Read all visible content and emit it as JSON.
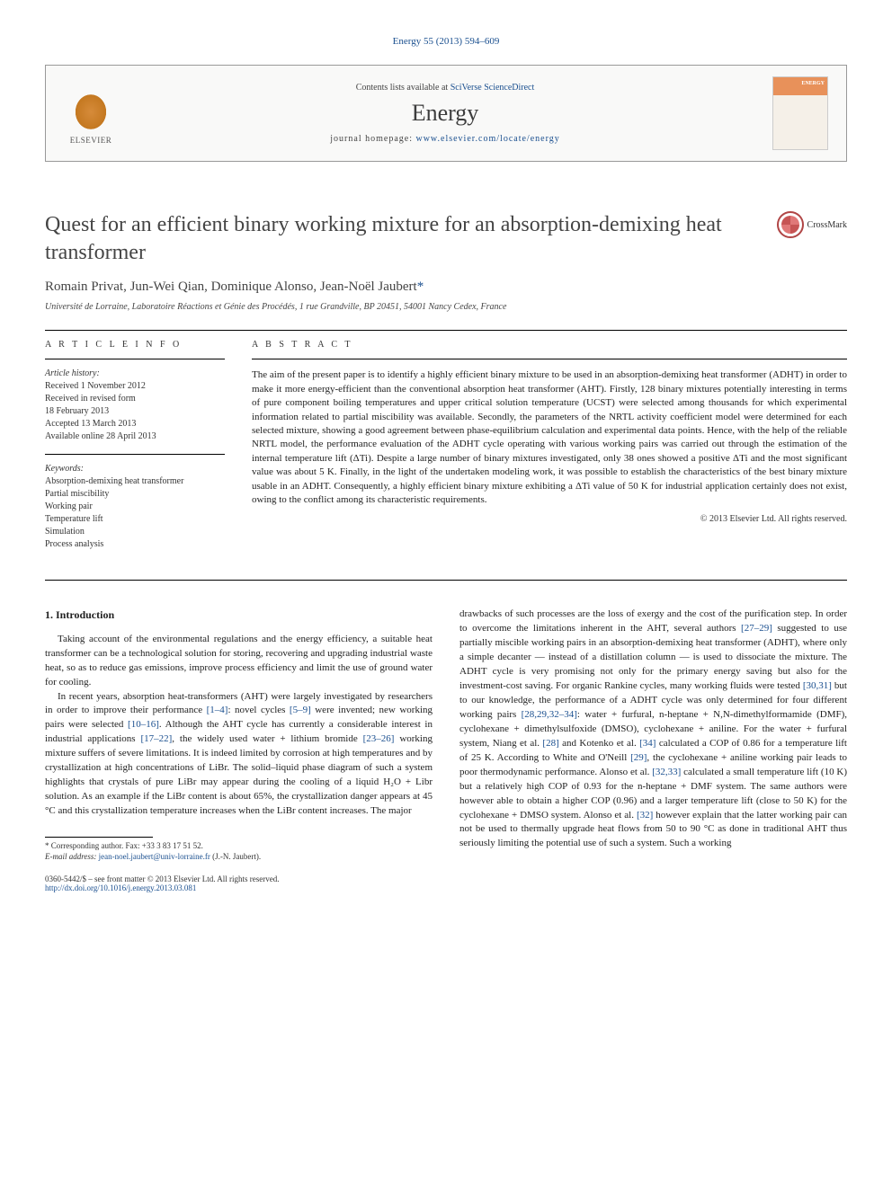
{
  "header": {
    "citation": "Energy 55 (2013) 594–609",
    "contents_prefix": "Contents lists available at ",
    "contents_link": "SciVerse ScienceDirect",
    "journal_name": "Energy",
    "homepage_prefix": "journal homepage: ",
    "homepage_url": "www.elsevier.com/locate/energy",
    "publisher": "ELSEVIER"
  },
  "crossmark": {
    "label": "CrossMark"
  },
  "title": "Quest for an efficient binary working mixture for an absorption-demixing heat transformer",
  "authors": "Romain Privat, Jun-Wei Qian, Dominique Alonso, Jean-Noël Jaubert",
  "corresp_mark": "*",
  "affiliation": "Université de Lorraine, Laboratoire Réactions et Génie des Procédés, 1 rue Grandville, BP 20451, 54001 Nancy Cedex, France",
  "info": {
    "heading": "A R T I C L E  I N F O",
    "history_title": "Article history:",
    "received": "Received 1 November 2012",
    "revised1": "Received in revised form",
    "revised2": "18 February 2013",
    "accepted": "Accepted 13 March 2013",
    "online": "Available online 28 April 2013",
    "keywords_title": "Keywords:",
    "kw1": "Absorption-demixing heat transformer",
    "kw2": "Partial miscibility",
    "kw3": "Working pair",
    "kw4": "Temperature lift",
    "kw5": "Simulation",
    "kw6": "Process analysis"
  },
  "abstract": {
    "heading": "A B S T R A C T",
    "text": "The aim of the present paper is to identify a highly efficient binary mixture to be used in an absorption-demixing heat transformer (ADHT) in order to make it more energy-efficient than the conventional absorption heat transformer (AHT). Firstly, 128 binary mixtures potentially interesting in terms of pure component boiling temperatures and upper critical solution temperature (UCST) were selected among thousands for which experimental information related to partial miscibility was available. Secondly, the parameters of the NRTL activity coefficient model were determined for each selected mixture, showing a good agreement between phase-equilibrium calculation and experimental data points. Hence, with the help of the reliable NRTL model, the performance evaluation of the ADHT cycle operating with various working pairs was carried out through the estimation of the internal temperature lift (ΔTi). Despite a large number of binary mixtures investigated, only 38 ones showed a positive ΔTi and the most significant value was about 5 K. Finally, in the light of the undertaken modeling work, it was possible to establish the characteristics of the best binary mixture usable in an ADHT. Consequently, a highly efficient binary mixture exhibiting a ΔTi value of 50 K for industrial application certainly does not exist, owing to the conflict among its characteristic requirements.",
    "copyright": "© 2013 Elsevier Ltd. All rights reserved."
  },
  "body": {
    "section_num": "1.",
    "section_title": "Introduction",
    "col1_p1": "Taking account of the environmental regulations and the energy efficiency, a suitable heat transformer can be a technological solution for storing, recovering and upgrading industrial waste heat, so as to reduce gas emissions, improve process efficiency and limit the use of ground water for cooling.",
    "col1_p2a": "In recent years, absorption heat-transformers (AHT) were largely investigated by researchers in order to improve their performance ",
    "ref_1_4": "[1–4]",
    "col1_p2b": ": novel cycles ",
    "ref_5_9": "[5–9]",
    "col1_p2c": " were invented; new working pairs were selected ",
    "ref_10_16": "[10–16]",
    "col1_p2d": ". Although the AHT cycle has currently a considerable interest in industrial applications ",
    "ref_17_22": "[17–22]",
    "col1_p2e": ", the widely used water + lithium bromide ",
    "ref_23_26": "[23–26]",
    "col1_p2f": " working mixture suffers of severe limitations. It is indeed limited by corrosion at high temperatures and by crystallization at high concentrations of LiBr. The solid–liquid phase diagram of such a system highlights that crystals of pure LiBr may appear during the cooling of a liquid H₂O + Libr solution. As an example if the LiBr content is about 65%, the crystallization danger appears at 45 °C and this crystallization temperature increases when the LiBr content increases. The major",
    "col2_p1a": "drawbacks of such processes are the loss of exergy and the cost of the purification step. In order to overcome the limitations inherent in the AHT, several authors ",
    "ref_27_29": "[27–29]",
    "col2_p1b": " suggested to use partially miscible working pairs in an absorption-demixing heat transformer (ADHT), where only a simple decanter — instead of a distillation column — is used to dissociate the mixture. The ADHT cycle is very promising not only for the primary energy saving but also for the investment-cost saving. For organic Rankine cycles, many working fluids were tested ",
    "ref_30_31": "[30,31]",
    "col2_p1c": " but to our knowledge, the performance of a ADHT cycle was only determined for four different working pairs ",
    "ref_28_34": "[28,29,32–34]",
    "col2_p1d": ": water + furfural, n-heptane + N,N-dimethylformamide (DMF), cyclohexane + dimethylsulfoxide (DMSO), cyclohexane + aniline. For the water + furfural system, Niang et al. ",
    "ref_28": "[28]",
    "col2_p1e": " and Kotenko et al. ",
    "ref_34": "[34]",
    "col2_p1f": " calculated a COP of 0.86 for a temperature lift of 25 K. According to White and O'Neill ",
    "ref_29": "[29]",
    "col2_p1g": ", the cyclohexane + aniline working pair leads to poor thermodynamic performance. Alonso et al. ",
    "ref_32_33": "[32,33]",
    "col2_p1h": " calculated a small temperature lift (10 K) but a relatively high COP of 0.93 for the n-heptane + DMF system. The same authors were however able to obtain a higher COP (0.96) and a larger temperature lift (close to 50 K) for the cyclohexane + DMSO system. Alonso et al. ",
    "ref_32": "[32]",
    "col2_p1i": " however explain that the latter working pair can not be used to thermally upgrade heat flows from 50 to 90 °C as done in traditional AHT thus seriously limiting the potential use of such a system. Such a working"
  },
  "footnote": {
    "corr_label": "* Corresponding author. Fax: +33 3 83 17 51 52.",
    "email_label": "E-mail address: ",
    "email": "jean-noel.jaubert@univ-lorraine.fr",
    "email_who": " (J.-N. Jaubert)."
  },
  "bottom": {
    "issn": "0360-5442/$ – see front matter © 2013 Elsevier Ltd. All rights reserved.",
    "doi_label": "http://dx.doi.org/",
    "doi": "10.1016/j.energy.2013.03.081"
  }
}
